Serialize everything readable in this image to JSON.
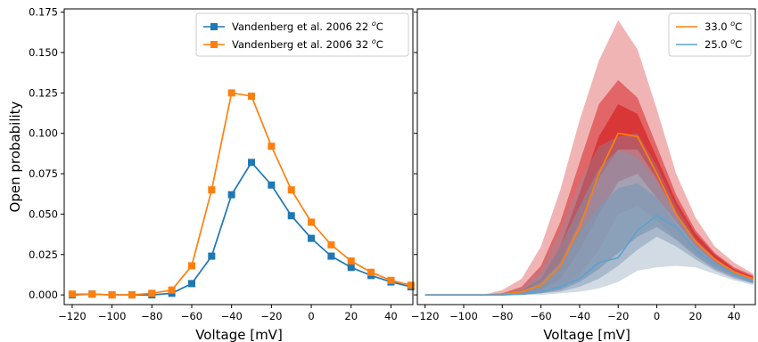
{
  "chart_data": [
    {
      "type": "line",
      "xlabel": "Voltage [mV]",
      "ylabel": "Open probability",
      "xlim": [
        -124,
        51
      ],
      "ylim": [
        -0.006,
        0.177
      ],
      "xticks": [
        -120,
        -100,
        -80,
        -60,
        -40,
        -20,
        0,
        20,
        40
      ],
      "xtick_labels": [
        "−120",
        "−100",
        "−80",
        "−60",
        "−40",
        "−20",
        "0",
        "20",
        "40"
      ],
      "yticks": [
        0.0,
        0.025,
        0.05,
        0.075,
        0.1,
        0.125,
        0.15,
        0.175
      ],
      "ytick_labels": [
        "0.000",
        "0.025",
        "0.050",
        "0.075",
        "0.100",
        "0.125",
        "0.150",
        "0.175"
      ],
      "legend_position": "top-right",
      "grid": false,
      "series": [
        {
          "name": "Vandenberg et al. 2006 22 °C",
          "legend_main": "Vandenberg et al. 2006 22 ",
          "legend_sup": "o",
          "legend_tail": "C",
          "color": "#1f77b4",
          "marker": "square",
          "x": [
            -120,
            -110,
            -100,
            -90,
            -80,
            -70,
            -60,
            -50,
            -40,
            -30,
            -20,
            -10,
            0,
            10,
            20,
            30,
            40,
            50
          ],
          "y": [
            0.0,
            0.0005,
            0.0,
            0.0,
            0.0,
            0.001,
            0.007,
            0.024,
            0.062,
            0.082,
            0.068,
            0.049,
            0.035,
            0.024,
            0.017,
            0.012,
            0.008,
            0.005
          ]
        },
        {
          "name": "Vandenberg et al. 2006 32 °C",
          "legend_main": "Vandenberg et al. 2006 32 ",
          "legend_sup": "o",
          "legend_tail": "C",
          "color": "#ff7f0e",
          "marker": "square",
          "x": [
            -120,
            -110,
            -100,
            -90,
            -80,
            -70,
            -60,
            -50,
            -40,
            -30,
            -20,
            -10,
            0,
            10,
            20,
            30,
            40,
            50
          ],
          "y": [
            0.0005,
            0.0005,
            0.0,
            0.0,
            0.001,
            0.003,
            0.018,
            0.065,
            0.125,
            0.123,
            0.092,
            0.065,
            0.045,
            0.031,
            0.021,
            0.014,
            0.009,
            0.006
          ]
        }
      ]
    },
    {
      "type": "area",
      "xlabel": "Voltage [mV]",
      "ylabel": "",
      "xlim": [
        -124,
        51
      ],
      "ylim": [
        -0.006,
        0.177
      ],
      "xticks": [
        -120,
        -100,
        -80,
        -60,
        -40,
        -20,
        0,
        20,
        40
      ],
      "xtick_labels": [
        "−120",
        "−100",
        "−80",
        "−60",
        "−40",
        "−20",
        "0",
        "20",
        "40"
      ],
      "legend_position": "top-right",
      "grid": false,
      "x": [
        -120,
        -110,
        -100,
        -90,
        -80,
        -70,
        -60,
        -50,
        -40,
        -30,
        -20,
        -10,
        0,
        10,
        20,
        30,
        40,
        50
      ],
      "bands": [
        {
          "color": "#d62728",
          "layers": [
            {
              "opacity": 0.35,
              "lower": [
                0,
                0,
                0,
                0,
                0,
                0,
                0.001,
                0.004,
                0.012,
                0.028,
                0.05,
                0.055,
                0.046,
                0.035,
                0.025,
                0.017,
                0.011,
                0.008
              ],
              "upper": [
                0,
                0,
                0,
                0,
                0.003,
                0.01,
                0.03,
                0.065,
                0.108,
                0.145,
                0.17,
                0.152,
                0.115,
                0.075,
                0.048,
                0.03,
                0.02,
                0.013
              ]
            },
            {
              "opacity": 0.55,
              "lower": [
                0,
                0,
                0,
                0,
                0,
                0.001,
                0.003,
                0.01,
                0.028,
                0.05,
                0.07,
                0.075,
                0.06,
                0.045,
                0.03,
                0.02,
                0.013,
                0.009
              ],
              "upper": [
                0,
                0,
                0,
                0,
                0.001,
                0.005,
                0.018,
                0.045,
                0.082,
                0.118,
                0.133,
                0.122,
                0.092,
                0.062,
                0.04,
                0.026,
                0.017,
                0.012
              ]
            },
            {
              "opacity": 0.75,
              "lower": [
                0,
                0,
                0,
                0,
                0,
                0.002,
                0.006,
                0.02,
                0.045,
                0.072,
                0.09,
                0.09,
                0.072,
                0.05,
                0.034,
                0.022,
                0.015,
                0.01
              ],
              "upper": [
                0,
                0,
                0,
                0,
                0.001,
                0.003,
                0.01,
                0.03,
                0.063,
                0.098,
                0.118,
                0.112,
                0.085,
                0.058,
                0.038,
                0.025,
                0.016,
                0.011
              ]
            }
          ]
        },
        {
          "color": "#7f97b2",
          "layers": [
            {
              "opacity": 0.35,
              "lower": [
                0,
                0,
                0,
                0,
                0,
                0,
                0,
                0.001,
                0.002,
                0.004,
                0.008,
                0.015,
                0.017,
                0.018,
                0.017,
                0.013,
                0.009,
                0.006
              ],
              "upper": [
                0,
                0,
                0,
                0,
                0.001,
                0.004,
                0.016,
                0.04,
                0.07,
                0.092,
                0.098,
                0.1,
                0.08,
                0.055,
                0.035,
                0.023,
                0.015,
                0.01
              ]
            },
            {
              "opacity": 0.5,
              "lower": [
                0,
                0,
                0,
                0,
                0,
                0,
                0.001,
                0.002,
                0.005,
                0.01,
                0.018,
                0.028,
                0.036,
                0.03,
                0.022,
                0.015,
                0.01,
                0.007
              ],
              "upper": [
                0,
                0,
                0,
                0,
                0.001,
                0.003,
                0.012,
                0.03,
                0.055,
                0.078,
                0.09,
                0.085,
                0.07,
                0.05,
                0.033,
                0.021,
                0.014,
                0.009
              ]
            },
            {
              "opacity": 0.7,
              "lower": [
                0,
                0,
                0,
                0,
                0,
                0,
                0.001,
                0.003,
                0.008,
                0.016,
                0.026,
                0.036,
                0.042,
                0.034,
                0.024,
                0.016,
                0.011,
                0.007
              ],
              "upper": [
                0,
                0,
                0,
                0,
                0,
                0.002,
                0.008,
                0.02,
                0.038,
                0.055,
                0.066,
                0.069,
                0.06,
                0.044,
                0.03,
                0.02,
                0.013,
                0.009
              ]
            }
          ]
        }
      ],
      "series": [
        {
          "name": "33.0 °C",
          "legend_main": "33.0 ",
          "legend_sup": "o",
          "legend_tail": "C",
          "color": "#ff7f0e",
          "y": [
            0,
            0,
            0,
            0,
            0.0005,
            0.002,
            0.006,
            0.018,
            0.042,
            0.075,
            0.1,
            0.098,
            0.075,
            0.05,
            0.033,
            0.022,
            0.014,
            0.01
          ]
        },
        {
          "name": "25.0 °C",
          "legend_main": "25.0 ",
          "legend_sup": "o",
          "legend_tail": "C",
          "color": "#5ba3cf",
          "y": [
            0,
            0,
            0,
            0,
            0,
            0.0005,
            0.002,
            0.005,
            0.01,
            0.02,
            0.023,
            0.04,
            0.049,
            0.042,
            0.028,
            0.019,
            0.013,
            0.008
          ]
        }
      ]
    }
  ]
}
